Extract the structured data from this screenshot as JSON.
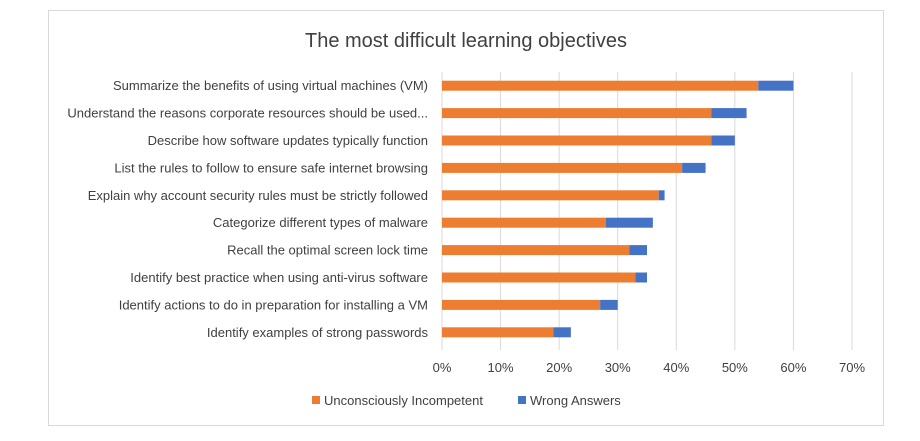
{
  "chart_data": {
    "type": "bar",
    "orientation": "horizontal",
    "stacked": true,
    "title": "The most difficult learning objectives",
    "categories": [
      "Summarize the benefits of using virtual machines (VM)",
      "Understand the reasons corporate resources should be used...",
      "Describe how software updates typically function",
      "List the rules to follow to ensure safe internet browsing",
      "Explain why account security rules must be strictly followed",
      "Categorize different types of malware",
      "Recall the optimal screen lock time",
      "Identify best practice when using anti-virus software",
      "Identify actions to do in preparation for installing a VM",
      "Identify examples of strong passwords"
    ],
    "series": [
      {
        "name": "Unconsciously Incompetent",
        "color": "#ED7D31",
        "values": [
          54,
          46,
          46,
          41,
          37,
          28,
          32,
          33,
          27,
          19
        ]
      },
      {
        "name": "Wrong Answers",
        "color": "#4472C4",
        "values": [
          6,
          6,
          4,
          4,
          1,
          8,
          3,
          2,
          3,
          3
        ]
      }
    ],
    "xlim": [
      0,
      70
    ],
    "xticks": [
      "0%",
      "10%",
      "20%",
      "30%",
      "40%",
      "50%",
      "60%",
      "70%"
    ],
    "grid": "vertical",
    "legend": "bottom"
  }
}
